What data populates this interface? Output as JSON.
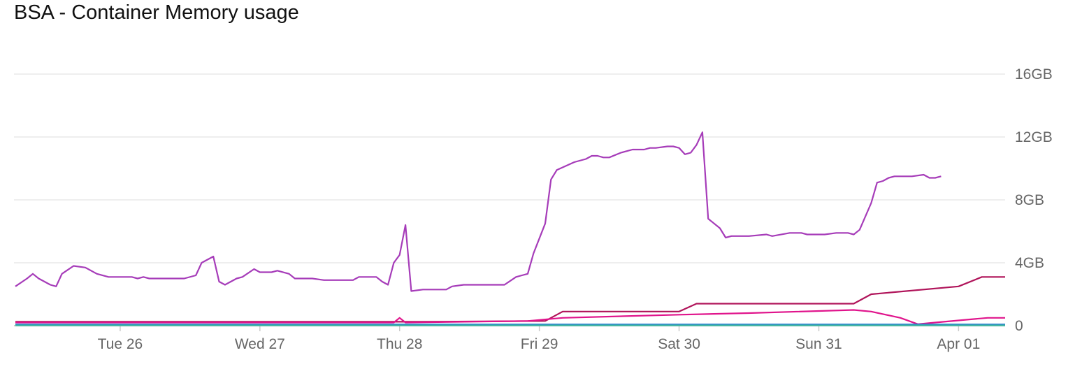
{
  "chart_data": {
    "type": "line",
    "title": "BSA - Container Memory usage",
    "xlabel": "",
    "ylabel": "",
    "ylim": [
      0,
      16
    ],
    "y_unit": "GB",
    "y_ticks": [
      {
        "value": 0,
        "label": "0"
      },
      {
        "value": 4,
        "label": "4GB"
      },
      {
        "value": 8,
        "label": "8GB"
      },
      {
        "value": 12,
        "label": "12GB"
      },
      {
        "value": 16,
        "label": "16GB"
      }
    ],
    "x_range": [
      "Mar 25 18:00",
      "Apr 01 20:00"
    ],
    "x_ticks": [
      {
        "date": "Mar 26 12:00",
        "label": "Tue 26"
      },
      {
        "date": "Mar 27 12:00",
        "label": "Wed 27"
      },
      {
        "date": "Mar 28 12:00",
        "label": "Thu 28"
      },
      {
        "date": "Mar 29 12:00",
        "label": "Fri 29"
      },
      {
        "date": "Mar 30 12:00",
        "label": "Sat 30"
      },
      {
        "date": "Mar 31 12:00",
        "label": "Sun 31"
      },
      {
        "date": "Apr 01 12:00",
        "label": "Apr 01"
      }
    ],
    "grid": true,
    "legend": "none",
    "series": [
      {
        "color": "#a63cb9",
        "points": [
          [
            "Mar 25 18:00",
            2.5
          ],
          [
            "Mar 25 20:00",
            3.0
          ],
          [
            "Mar 25 21:00",
            3.3
          ],
          [
            "Mar 25 22:00",
            3.0
          ],
          [
            "Mar 26 00:00",
            2.6
          ],
          [
            "Mar 26 01:00",
            2.5
          ],
          [
            "Mar 26 02:00",
            3.3
          ],
          [
            "Mar 26 04:00",
            3.8
          ],
          [
            "Mar 26 06:00",
            3.7
          ],
          [
            "Mar 26 08:00",
            3.3
          ],
          [
            "Mar 26 10:00",
            3.1
          ],
          [
            "Mar 26 14:00",
            3.1
          ],
          [
            "Mar 26 15:00",
            3.0
          ],
          [
            "Mar 26 16:00",
            3.1
          ],
          [
            "Mar 26 17:00",
            3.0
          ],
          [
            "Mar 26 20:00",
            3.0
          ],
          [
            "Mar 26 23:00",
            3.0
          ],
          [
            "Mar 27 01:00",
            3.2
          ],
          [
            "Mar 27 02:00",
            4.0
          ],
          [
            "Mar 27 04:00",
            4.4
          ],
          [
            "Mar 27 05:00",
            2.8
          ],
          [
            "Mar 27 06:00",
            2.6
          ],
          [
            "Mar 27 08:00",
            3.0
          ],
          [
            "Mar 27 09:00",
            3.1
          ],
          [
            "Mar 27 11:00",
            3.6
          ],
          [
            "Mar 27 12:00",
            3.4
          ],
          [
            "Mar 27 14:00",
            3.4
          ],
          [
            "Mar 27 15:00",
            3.5
          ],
          [
            "Mar 27 17:00",
            3.3
          ],
          [
            "Mar 27 18:00",
            3.0
          ],
          [
            "Mar 27 21:00",
            3.0
          ],
          [
            "Mar 27 23:00",
            2.9
          ],
          [
            "Mar 28 00:00",
            2.9
          ],
          [
            "Mar 28 02:00",
            2.9
          ],
          [
            "Mar 28 04:00",
            2.9
          ],
          [
            "Mar 28 05:00",
            3.1
          ],
          [
            "Mar 28 08:00",
            3.1
          ],
          [
            "Mar 28 09:00",
            2.8
          ],
          [
            "Mar 28 10:00",
            2.6
          ],
          [
            "Mar 28 11:00",
            4.0
          ],
          [
            "Mar 28 12:00",
            4.5
          ],
          [
            "Mar 28 13:00",
            6.4
          ],
          [
            "Mar 28 14:00",
            2.2
          ],
          [
            "Mar 28 16:00",
            2.3
          ],
          [
            "Mar 28 20:00",
            2.3
          ],
          [
            "Mar 28 21:00",
            2.5
          ],
          [
            "Mar 28 23:00",
            2.6
          ],
          [
            "Mar 29 00:00",
            2.6
          ],
          [
            "Mar 29 02:00",
            2.6
          ],
          [
            "Mar 29 06:00",
            2.6
          ],
          [
            "Mar 29 08:00",
            3.1
          ],
          [
            "Mar 29 09:00",
            3.2
          ],
          [
            "Mar 29 10:00",
            3.3
          ],
          [
            "Mar 29 11:00",
            4.6
          ],
          [
            "Mar 29 13:00",
            6.5
          ],
          [
            "Mar 29 14:00",
            9.3
          ],
          [
            "Mar 29 15:00",
            9.9
          ],
          [
            "Mar 29 18:00",
            10.4
          ],
          [
            "Mar 29 20:00",
            10.6
          ],
          [
            "Mar 29 21:00",
            10.8
          ],
          [
            "Mar 29 22:00",
            10.8
          ],
          [
            "Mar 29 23:00",
            10.7
          ],
          [
            "Mar 30 00:00",
            10.7
          ],
          [
            "Mar 30 02:00",
            11.0
          ],
          [
            "Mar 30 04:00",
            11.2
          ],
          [
            "Mar 30 06:00",
            11.2
          ],
          [
            "Mar 30 07:00",
            11.3
          ],
          [
            "Mar 30 08:00",
            11.3
          ],
          [
            "Mar 30 10:00",
            11.4
          ],
          [
            "Mar 30 11:00",
            11.4
          ],
          [
            "Mar 30 12:00",
            11.3
          ],
          [
            "Mar 30 13:00",
            10.9
          ],
          [
            "Mar 30 14:00",
            11.0
          ],
          [
            "Mar 30 15:00",
            11.5
          ],
          [
            "Mar 30 16:00",
            12.3
          ],
          [
            "Mar 30 17:00",
            6.8
          ],
          [
            "Mar 30 19:00",
            6.2
          ],
          [
            "Mar 30 20:00",
            5.6
          ],
          [
            "Mar 30 21:00",
            5.7
          ],
          [
            "Mar 31 00:00",
            5.7
          ],
          [
            "Mar 31 03:00",
            5.8
          ],
          [
            "Mar 31 04:00",
            5.7
          ],
          [
            "Mar 31 07:00",
            5.9
          ],
          [
            "Mar 31 09:00",
            5.9
          ],
          [
            "Mar 31 10:00",
            5.8
          ],
          [
            "Mar 31 13:00",
            5.8
          ],
          [
            "Mar 31 15:00",
            5.9
          ],
          [
            "Mar 31 17:00",
            5.9
          ],
          [
            "Mar 31 18:00",
            5.8
          ],
          [
            "Mar 31 19:00",
            6.1
          ],
          [
            "Mar 31 21:00",
            7.8
          ],
          [
            "Mar 31 22:00",
            9.1
          ],
          [
            "Mar 31 23:00",
            9.2
          ],
          [
            "Apr 01 00:00",
            9.4
          ],
          [
            "Apr 01 01:00",
            9.5
          ],
          [
            "Apr 01 04:00",
            9.5
          ],
          [
            "Apr 01 06:00",
            9.6
          ],
          [
            "Apr 01 07:00",
            9.4
          ],
          [
            "Apr 01 08:00",
            9.4
          ],
          [
            "Apr 01 09:00",
            9.5
          ]
        ]
      },
      {
        "color": "#b0145a",
        "points": [
          [
            "Mar 25 18:00",
            0.25
          ],
          [
            "Mar 28 12:00",
            0.25
          ],
          [
            "Mar 28 15:00",
            0.25
          ],
          [
            "Mar 29 13:00",
            0.3
          ],
          [
            "Mar 29 16:00",
            0.9
          ],
          [
            "Mar 30 12:00",
            0.9
          ],
          [
            "Mar 30 15:00",
            1.4
          ],
          [
            "Mar 31 18:00",
            1.4
          ],
          [
            "Mar 31 21:00",
            2.0
          ],
          [
            "Apr 01 12:00",
            2.5
          ],
          [
            "Apr 01 16:00",
            3.1
          ],
          [
            "Apr 01 20:00",
            3.1
          ]
        ]
      },
      {
        "color": "#e0148c",
        "points": [
          [
            "Mar 25 18:00",
            0.2
          ],
          [
            "Mar 28 11:00",
            0.2
          ],
          [
            "Mar 28 12:00",
            0.5
          ],
          [
            "Mar 28 13:00",
            0.2
          ],
          [
            "Mar 29 10:00",
            0.3
          ],
          [
            "Mar 29 16:00",
            0.5
          ],
          [
            "Mar 30 12:00",
            0.7
          ],
          [
            "Mar 31 00:00",
            0.8
          ],
          [
            "Mar 31 18:00",
            1.0
          ],
          [
            "Mar 31 21:00",
            0.9
          ],
          [
            "Apr 01 02:00",
            0.5
          ],
          [
            "Apr 01 05:00",
            0.1
          ],
          [
            "Apr 01 08:00",
            0.2
          ],
          [
            "Apr 01 14:00",
            0.4
          ],
          [
            "Apr 01 17:00",
            0.5
          ],
          [
            "Apr 01 20:00",
            0.5
          ]
        ]
      },
      {
        "color": "#f0a030",
        "points": [
          [
            "Mar 28 13:00",
            0.05
          ],
          [
            "Mar 28 16:00",
            0.05
          ]
        ]
      },
      {
        "color": "#2a7fd4",
        "points": [
          [
            "Mar 25 18:00",
            0.08
          ],
          [
            "Apr 01 20:00",
            0.08
          ]
        ]
      },
      {
        "color": "#3cb4a0",
        "points": [
          [
            "Mar 25 18:00",
            0.02
          ],
          [
            "Apr 01 20:00",
            0.02
          ]
        ]
      }
    ]
  }
}
